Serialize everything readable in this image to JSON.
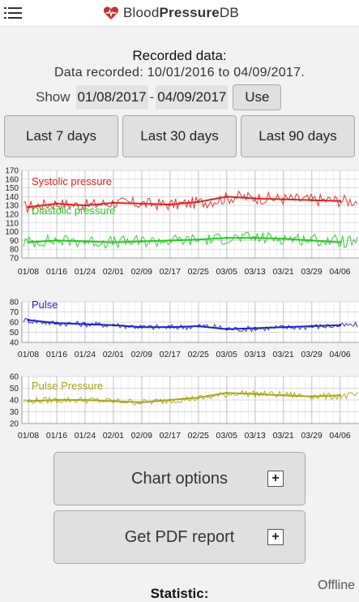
{
  "app": {
    "name_regular_1": "Blood",
    "name_bold": "Pressure",
    "name_regular_2": "DB",
    "icons": {
      "menu": "hamburger-menu-icon",
      "logo": "heart-logo-icon",
      "expand": "plus-icon"
    },
    "accent": "#c9302c"
  },
  "recorded": {
    "title": "Recorded data:",
    "range": "Data recorded: 10/01/2016 to 04/09/2017."
  },
  "show": {
    "label": "Show",
    "from": "01/08/2017",
    "separator": "-",
    "to": "04/09/2017",
    "use_label": "Use"
  },
  "range_buttons": [
    "Last 7 days",
    "Last 30 days",
    "Last 90 days"
  ],
  "x_ticks": [
    "01/08",
    "01/16",
    "01/24",
    "02/01",
    "02/09",
    "02/17",
    "02/25",
    "03/05",
    "03/13",
    "03/21",
    "03/29",
    "04/06"
  ],
  "chart_data": [
    {
      "type": "line",
      "x": [
        "01/08",
        "01/16",
        "01/24",
        "02/01",
        "02/09",
        "02/17",
        "02/25",
        "03/05",
        "03/13",
        "03/21",
        "03/29",
        "04/06"
      ],
      "yticks": [
        70,
        80,
        90,
        100,
        110,
        120,
        130,
        140,
        150,
        160,
        170
      ],
      "ylim": [
        70,
        170
      ],
      "grid": true,
      "series": [
        {
          "name": "Systolic pressure",
          "color": "#dd2222",
          "values": [
            128,
            132,
            130,
            133,
            132,
            131,
            134,
            140,
            138,
            137,
            136,
            135
          ]
        },
        {
          "name": "Diastolic pressure",
          "color": "#22cc22",
          "values": [
            88,
            90,
            89,
            88,
            89,
            90,
            91,
            93,
            93,
            92,
            90,
            88
          ]
        }
      ]
    },
    {
      "type": "line",
      "x": [
        "01/08",
        "01/16",
        "01/24",
        "02/01",
        "02/09",
        "02/17",
        "02/25",
        "03/05",
        "03/13",
        "03/21",
        "03/29",
        "04/06"
      ],
      "yticks": [
        40,
        50,
        60,
        70,
        80
      ],
      "ylim": [
        40,
        80
      ],
      "grid": true,
      "series": [
        {
          "name": "Pulse",
          "color": "#2222cc",
          "values": [
            62,
            59,
            58,
            57,
            55,
            55,
            56,
            53,
            54,
            55,
            56,
            57
          ]
        }
      ]
    },
    {
      "type": "line",
      "x": [
        "01/08",
        "01/16",
        "01/24",
        "02/01",
        "02/09",
        "02/17",
        "02/25",
        "03/05",
        "03/13",
        "03/21",
        "03/29",
        "04/06"
      ],
      "yticks": [
        20,
        30,
        40,
        50,
        60
      ],
      "ylim": [
        20,
        60
      ],
      "grid": true,
      "series": [
        {
          "name": "Pulse Pressure",
          "color": "#a8a815",
          "values": [
            39,
            40,
            40,
            39,
            38,
            40,
            42,
            46,
            45,
            44,
            43,
            44
          ]
        }
      ]
    }
  ],
  "buttons": {
    "chart_options": "Chart options",
    "pdf_report": "Get PDF report",
    "plus": "+"
  },
  "statistic_title": "Statistic:",
  "status": "Offline"
}
